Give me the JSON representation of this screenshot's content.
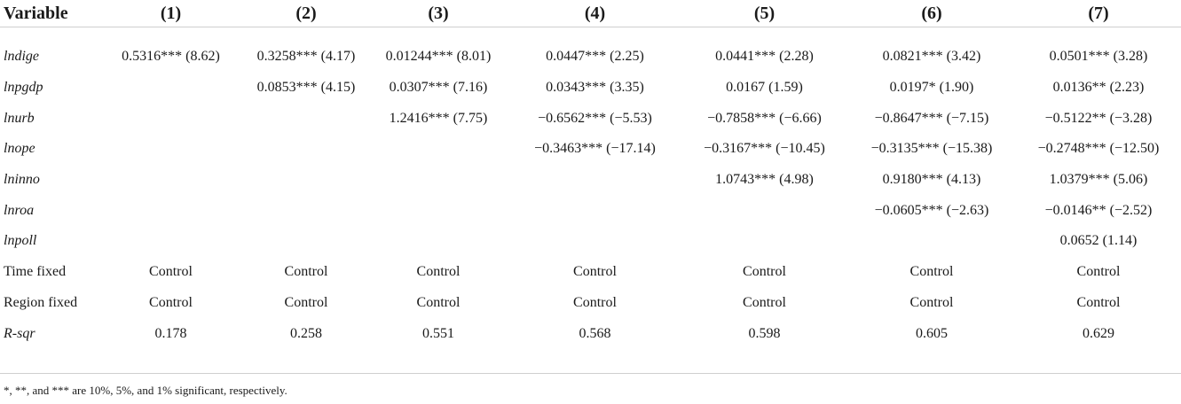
{
  "table": {
    "headers": [
      "Variable",
      "(1)",
      "(2)",
      "(3)",
      "(4)",
      "(5)",
      "(6)",
      "(7)"
    ],
    "rows": [
      {
        "var": "lndige",
        "italic": true,
        "cells": [
          "0.5316*** (8.62)",
          "0.3258*** (4.17)",
          "0.01244*** (8.01)",
          "0.0447*** (2.25)",
          "0.0441*** (2.28)",
          "0.0821*** (3.42)",
          "0.0501*** (3.28)"
        ]
      },
      {
        "var": "lnpgdp",
        "italic": true,
        "cells": [
          "",
          "0.0853*** (4.15)",
          "0.0307*** (7.16)",
          "0.0343*** (3.35)",
          "0.0167 (1.59)",
          "0.0197* (1.90)",
          "0.0136** (2.23)"
        ]
      },
      {
        "var": "lnurb",
        "italic": true,
        "cells": [
          "",
          "",
          "1.2416*** (7.75)",
          "−0.6562*** (−5.53)",
          "−0.7858*** (−6.66)",
          "−0.8647*** (−7.15)",
          "−0.5122** (−3.28)"
        ]
      },
      {
        "var": "lnope",
        "italic": true,
        "cells": [
          "",
          "",
          "",
          "−0.3463*** (−17.14)",
          "−0.3167*** (−10.45)",
          "−0.3135*** (−15.38)",
          "−0.2748*** (−12.50)"
        ]
      },
      {
        "var": "lninno",
        "italic": true,
        "cells": [
          "",
          "",
          "",
          "",
          "1.0743*** (4.98)",
          "0.9180*** (4.13)",
          "1.0379*** (5.06)"
        ]
      },
      {
        "var": "lnroa",
        "italic": true,
        "cells": [
          "",
          "",
          "",
          "",
          "",
          "−0.0605*** (−2.63)",
          "−0.0146** (−2.52)"
        ]
      },
      {
        "var": "lnpoll",
        "italic": true,
        "cells": [
          "",
          "",
          "",
          "",
          "",
          "",
          "0.0652 (1.14)"
        ]
      },
      {
        "var": "Time fixed",
        "italic": false,
        "cells": [
          "Control",
          "Control",
          "Control",
          "Control",
          "Control",
          "Control",
          "Control"
        ]
      },
      {
        "var": "Region fixed",
        "italic": false,
        "cells": [
          "Control",
          "Control",
          "Control",
          "Control",
          "Control",
          "Control",
          "Control"
        ]
      },
      {
        "var": "R-sqr",
        "italic": true,
        "cells": [
          "0.178",
          "0.258",
          "0.551",
          "0.568",
          "0.598",
          "0.605",
          "0.629"
        ]
      }
    ]
  },
  "note": "*, **, and *** are 10%, 5%, and 1% significant, respectively."
}
